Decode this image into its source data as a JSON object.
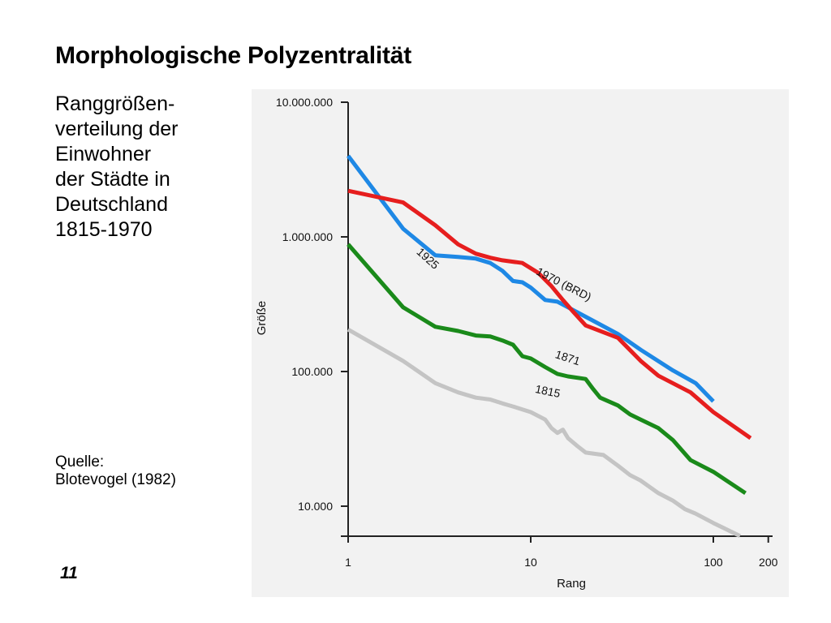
{
  "slide": {
    "title": "Morphologische Polyzentralität",
    "subtitle_lines": [
      "Ranggrößen-",
      "verteilung der",
      "Einwohner",
      "der Städte in",
      "Deutschland",
      "1815-1970"
    ],
    "source_lines": [
      "Quelle:",
      "Blotevogel (1982)"
    ],
    "number": "11"
  },
  "chart_data": {
    "type": "line",
    "title": "",
    "xlabel": "Rang",
    "ylabel": "Größe",
    "x_scale": "log",
    "y_scale": "log",
    "xlim": [
      1,
      200
    ],
    "ylim": [
      6000,
      10000000
    ],
    "x_ticks": [
      {
        "value": 1,
        "label": "1"
      },
      {
        "value": 10,
        "label": "10"
      },
      {
        "value": 100,
        "label": "100"
      },
      {
        "value": 200,
        "label": "200"
      }
    ],
    "y_ticks": [
      {
        "value": 10000000,
        "label": "10.000.000"
      },
      {
        "value": 1000000,
        "label": "1.000.000"
      },
      {
        "value": 100000,
        "label": "100.000"
      },
      {
        "value": 10000,
        "label": "10.000"
      }
    ],
    "grid": false,
    "legend": "none",
    "series": [
      {
        "name": "1925",
        "color": "#1e88e5",
        "points": [
          [
            1,
            4000000
          ],
          [
            2,
            1150000
          ],
          [
            3,
            730000
          ],
          [
            4,
            710000
          ],
          [
            5,
            690000
          ],
          [
            6,
            640000
          ],
          [
            7,
            560000
          ],
          [
            8,
            470000
          ],
          [
            9,
            460000
          ],
          [
            10,
            420000
          ],
          [
            12,
            340000
          ],
          [
            14,
            330000
          ],
          [
            16,
            300000
          ],
          [
            20,
            255000
          ],
          [
            30,
            190000
          ],
          [
            40,
            145000
          ],
          [
            60,
            102000
          ],
          [
            80,
            82000
          ],
          [
            100,
            60000
          ]
        ]
      },
      {
        "name": "1970 (BRD)",
        "color": "#e61e1e",
        "points": [
          [
            1,
            2200000
          ],
          [
            2,
            1800000
          ],
          [
            3,
            1220000
          ],
          [
            4,
            880000
          ],
          [
            5,
            750000
          ],
          [
            6,
            700000
          ],
          [
            7,
            670000
          ],
          [
            9,
            640000
          ],
          [
            11,
            540000
          ],
          [
            13,
            430000
          ],
          [
            15,
            340000
          ],
          [
            17,
            280000
          ],
          [
            20,
            220000
          ],
          [
            30,
            178000
          ],
          [
            40,
            120000
          ],
          [
            50,
            93000
          ],
          [
            75,
            70000
          ],
          [
            100,
            50000
          ],
          [
            160,
            32000
          ]
        ]
      },
      {
        "name": "1871",
        "color": "#1a8a1a",
        "points": [
          [
            1,
            880000
          ],
          [
            2,
            300000
          ],
          [
            3,
            215000
          ],
          [
            4,
            200000
          ],
          [
            5,
            185000
          ],
          [
            6,
            182000
          ],
          [
            7,
            170000
          ],
          [
            8,
            158000
          ],
          [
            9,
            130000
          ],
          [
            10,
            125000
          ],
          [
            12,
            108000
          ],
          [
            14,
            96000
          ],
          [
            16,
            92000
          ],
          [
            20,
            88000
          ],
          [
            22,
            74000
          ],
          [
            24,
            64000
          ],
          [
            30,
            56000
          ],
          [
            35,
            48000
          ],
          [
            40,
            44000
          ],
          [
            50,
            38000
          ],
          [
            60,
            31000
          ],
          [
            75,
            22000
          ],
          [
            100,
            18000
          ],
          [
            150,
            12500
          ]
        ]
      },
      {
        "name": "1815",
        "color": "#c4c4c4",
        "points": [
          [
            1,
            205000
          ],
          [
            2,
            120000
          ],
          [
            3,
            82000
          ],
          [
            4,
            70000
          ],
          [
            5,
            64000
          ],
          [
            6,
            62000
          ],
          [
            7,
            58000
          ],
          [
            8,
            55000
          ],
          [
            10,
            50000
          ],
          [
            12,
            44000
          ],
          [
            13,
            38000
          ],
          [
            14,
            35000
          ],
          [
            15,
            37000
          ],
          [
            16,
            32000
          ],
          [
            18,
            28000
          ],
          [
            20,
            25000
          ],
          [
            25,
            24000
          ],
          [
            30,
            20000
          ],
          [
            35,
            17000
          ],
          [
            40,
            15500
          ],
          [
            50,
            12500
          ],
          [
            60,
            11000
          ],
          [
            70,
            9500
          ],
          [
            80,
            8800
          ],
          [
            100,
            7500
          ],
          [
            140,
            6000
          ]
        ]
      }
    ],
    "annotations": [
      {
        "text": "1925",
        "x": 2.35,
        "y": 760000,
        "angle": 42
      },
      {
        "text": "1970 (BRD)",
        "x": 10.6,
        "y": 530000,
        "angle": 27
      },
      {
        "text": "1871",
        "x": 13.5,
        "y": 127000,
        "angle": 18
      },
      {
        "text": "1815",
        "x": 10.5,
        "y": 70000,
        "angle": 12
      }
    ]
  }
}
